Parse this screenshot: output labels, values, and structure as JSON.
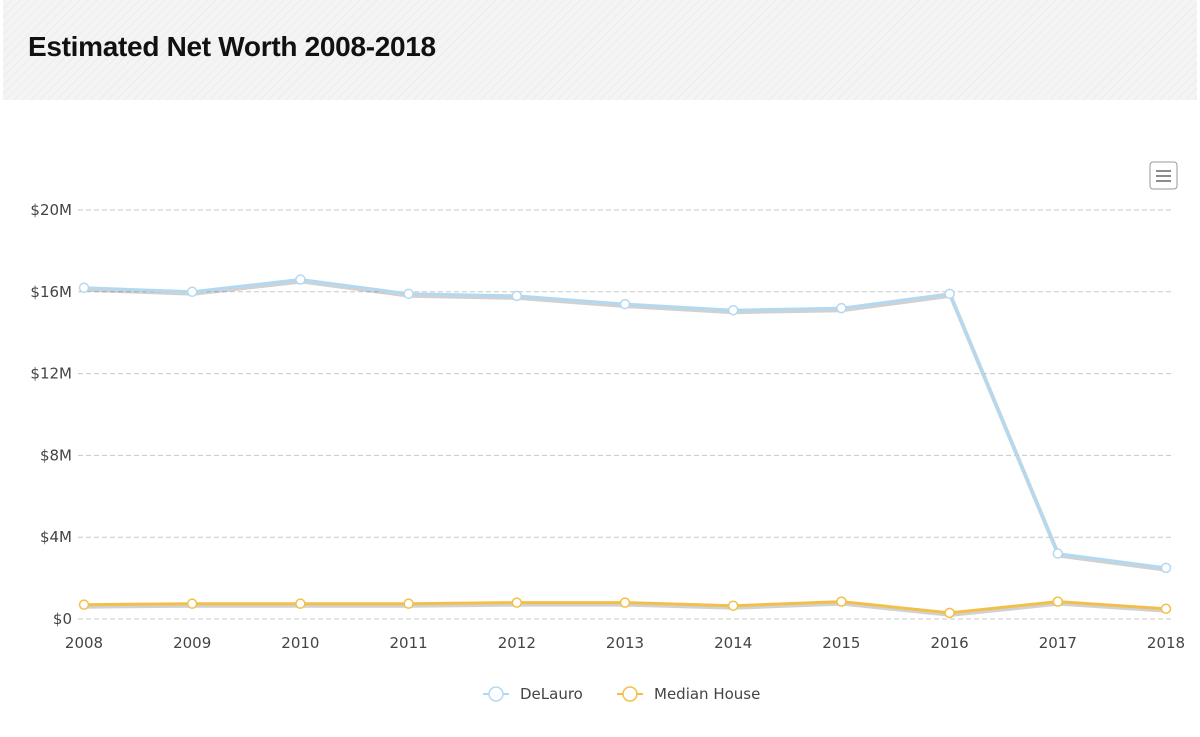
{
  "title": "Estimated Net Worth 2008-2018",
  "chart_menu_icon": "hamburger-menu-icon",
  "colors": {
    "delauro": "#b3d9f2",
    "median_house": "#f2c04a",
    "grid": "#c8c8c8",
    "text": "#444444"
  },
  "chart_data": {
    "type": "line",
    "title": "Estimated Net Worth 2008-2018",
    "xlabel": "",
    "ylabel": "",
    "categories": [
      "2008",
      "2009",
      "2010",
      "2011",
      "2012",
      "2013",
      "2014",
      "2015",
      "2016",
      "2017",
      "2018"
    ],
    "series": [
      {
        "name": "DeLauro",
        "values": [
          16.2,
          16.0,
          16.6,
          15.9,
          15.8,
          15.4,
          15.1,
          15.2,
          15.9,
          3.2,
          2.5
        ]
      },
      {
        "name": "Median House",
        "values": [
          0.7,
          0.75,
          0.75,
          0.75,
          0.8,
          0.8,
          0.65,
          0.85,
          0.3,
          0.85,
          0.5
        ]
      }
    ],
    "ylim": [
      0,
      20
    ],
    "yticks": [
      "$0",
      "$4M",
      "$8M",
      "$12M",
      "$16M",
      "$20M"
    ],
    "grid": true,
    "legend": "bottom-center"
  }
}
